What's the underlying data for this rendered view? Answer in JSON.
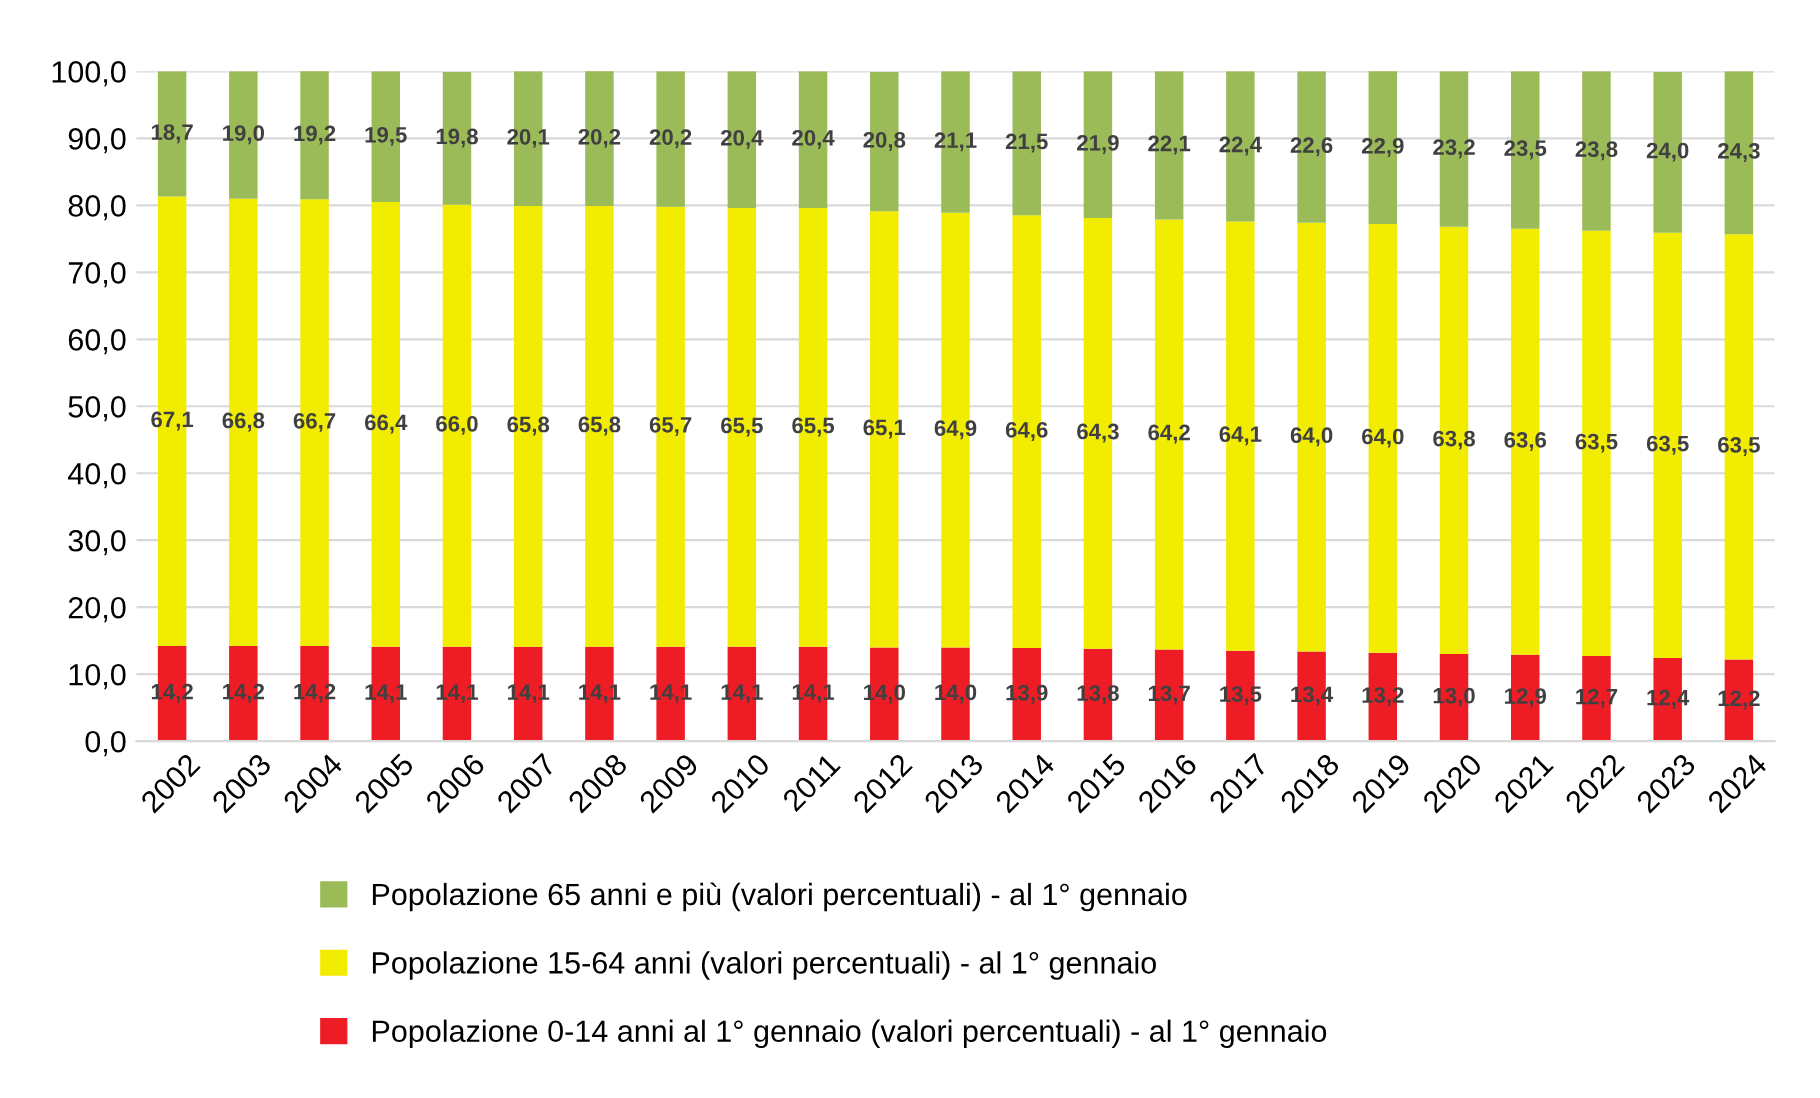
{
  "chart_data": {
    "type": "bar",
    "stacked": true,
    "categories": [
      "2002",
      "2003",
      "2004",
      "2005",
      "2006",
      "2007",
      "2008",
      "2009",
      "2010",
      "2011",
      "2012",
      "2013",
      "2014",
      "2015",
      "2016",
      "2017",
      "2018",
      "2019",
      "2020",
      "2021",
      "2022",
      "2023",
      "2024"
    ],
    "series": [
      {
        "name": "Popolazione 0-14 anni al 1° gennaio (valori percentuali) - al 1° gennaio",
        "color": "#ee1c25",
        "values": [
          14.2,
          14.2,
          14.2,
          14.1,
          14.1,
          14.1,
          14.1,
          14.1,
          14.1,
          14.1,
          14.0,
          14.0,
          13.9,
          13.8,
          13.7,
          13.5,
          13.4,
          13.2,
          13.0,
          12.9,
          12.7,
          12.4,
          12.2
        ],
        "value_labels": [
          "14,2",
          "14,2",
          "14,2",
          "14,1",
          "14,1",
          "14,1",
          "14,1",
          "14,1",
          "14,1",
          "14,1",
          "14,0",
          "14,0",
          "13,9",
          "13,8",
          "13,7",
          "13,5",
          "13,4",
          "13,2",
          "13,0",
          "12,9",
          "12,7",
          "12,4",
          "12,2"
        ]
      },
      {
        "name": "Popolazione 15-64 anni (valori percentuali) - al 1° gennaio",
        "color": "#f2ec00",
        "values": [
          67.1,
          66.8,
          66.7,
          66.4,
          66.0,
          65.8,
          65.8,
          65.7,
          65.5,
          65.5,
          65.1,
          64.9,
          64.6,
          64.3,
          64.2,
          64.1,
          64.0,
          64.0,
          63.8,
          63.6,
          63.5,
          63.5,
          63.5
        ],
        "value_labels": [
          "67,1",
          "66,8",
          "66,7",
          "66,4",
          "66,0",
          "65,8",
          "65,8",
          "65,7",
          "65,5",
          "65,5",
          "65,1",
          "64,9",
          "64,6",
          "64,3",
          "64,2",
          "64,1",
          "64,0",
          "64,0",
          "63,8",
          "63,6",
          "63,5",
          "63,5",
          "63,5"
        ]
      },
      {
        "name": "Popolazione 65 anni e più (valori percentuali) - al 1° gennaio",
        "color": "#9bbb59",
        "values": [
          18.7,
          19.0,
          19.2,
          19.5,
          19.8,
          20.1,
          20.2,
          20.2,
          20.4,
          20.4,
          20.8,
          21.1,
          21.5,
          21.9,
          22.1,
          22.4,
          22.6,
          22.9,
          23.2,
          23.5,
          23.8,
          24.0,
          24.3
        ],
        "value_labels": [
          "18,7",
          "19,0",
          "19,2",
          "19,5",
          "19,8",
          "20,1",
          "20,2",
          "20,2",
          "20,4",
          "20,4",
          "20,8",
          "21,1",
          "21,5",
          "21,9",
          "22,1",
          "22,4",
          "22,6",
          "22,9",
          "23,2",
          "23,5",
          "23,8",
          "24,0",
          "24,3"
        ]
      }
    ],
    "ylim": [
      0,
      100
    ],
    "yticks": [
      {
        "value": 0,
        "label": "0,0"
      },
      {
        "value": 10,
        "label": "10,0"
      },
      {
        "value": 20,
        "label": "20,0"
      },
      {
        "value": 30,
        "label": "30,0"
      },
      {
        "value": 40,
        "label": "40,0"
      },
      {
        "value": 50,
        "label": "50,0"
      },
      {
        "value": 60,
        "label": "60,0"
      },
      {
        "value": 70,
        "label": "70,0"
      },
      {
        "value": 80,
        "label": "80,0"
      },
      {
        "value": 90,
        "label": "90,0"
      },
      {
        "value": 100,
        "label": "100,0"
      }
    ],
    "grid": "y",
    "legend": "bottom"
  }
}
